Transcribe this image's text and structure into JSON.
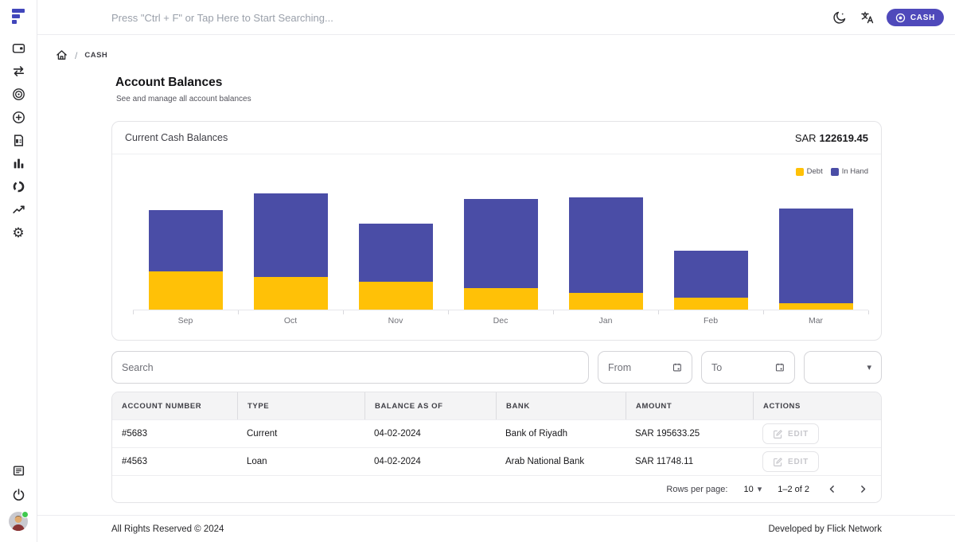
{
  "topbar": {
    "search_placeholder": "Press \"Ctrl + F\" or Tap Here to Start Searching...",
    "cash_button_label": "CASH",
    "icons": [
      "dark-mode-moon-icon",
      "translate-icon",
      "cash-target-icon"
    ]
  },
  "sidebar": {
    "icons_top": [
      "wallet",
      "transfer-arrows",
      "target",
      "add-circle",
      "invoice",
      "bar-chart",
      "donut",
      "trend-line",
      "settings-gear"
    ],
    "icons_bottom": [
      "news-document",
      "power",
      "user-avatar"
    ]
  },
  "breadcrumb": {
    "home": "home-icon",
    "separator": "/",
    "current": "CASH"
  },
  "page": {
    "title": "Account Balances",
    "subtitle": "See and manage all account balances"
  },
  "balance_card": {
    "title": "Current Cash Balances",
    "currency": "SAR",
    "amount": "122619.45"
  },
  "chart_data": {
    "type": "bar",
    "stacked": true,
    "title": "Current Cash Balances",
    "categories": [
      "Sep",
      "Oct",
      "Nov",
      "Dec",
      "Jan",
      "Feb",
      "Mar"
    ],
    "series": [
      {
        "name": "Debt",
        "color": "#ffc107",
        "values": [
          48,
          41,
          35,
          27,
          21,
          15,
          8
        ]
      },
      {
        "name": "In Hand",
        "color": "#4a4da6",
        "values": [
          77,
          105,
          73,
          112,
          120,
          59,
          119
        ]
      }
    ],
    "xlabel": "",
    "ylabel": "",
    "ylim": [
      0,
      196
    ],
    "grid": false,
    "legend_position": "top-right",
    "note": "y-axis has no visible tick labels; values are estimated relative units read from bar heights"
  },
  "filters": {
    "search_placeholder": "Search",
    "from_placeholder": "From",
    "to_placeholder": "To",
    "select_value": ""
  },
  "table": {
    "columns": [
      "ACCOUNT NUMBER",
      "TYPE",
      "BALANCE AS OF",
      "BANK",
      "AMOUNT",
      "ACTIONS"
    ],
    "rows": [
      {
        "account_number": "#5683",
        "type": "Current",
        "balance_as_of": "04-02-2024",
        "bank": "Bank of Riyadh",
        "amount": "SAR 195633.25",
        "action": "EDIT"
      },
      {
        "account_number": "#4563",
        "type": "Loan",
        "balance_as_of": "04-02-2024",
        "bank": "Arab National Bank",
        "amount": "SAR 11748.11",
        "action": "EDIT"
      }
    ],
    "pagination": {
      "rows_per_page_label": "Rows per page:",
      "rows_per_page_value": "10",
      "range": "1–2 of 2"
    }
  },
  "footer": {
    "left": "All Rights Reserved © 2024",
    "right": "Developed by Flick Network"
  },
  "colors": {
    "accent": "#4f49bb",
    "logo": "#4146bb",
    "debt": "#ffc107",
    "in_hand": "#4a4da6",
    "table_header_bg": "#f4f4f5"
  }
}
